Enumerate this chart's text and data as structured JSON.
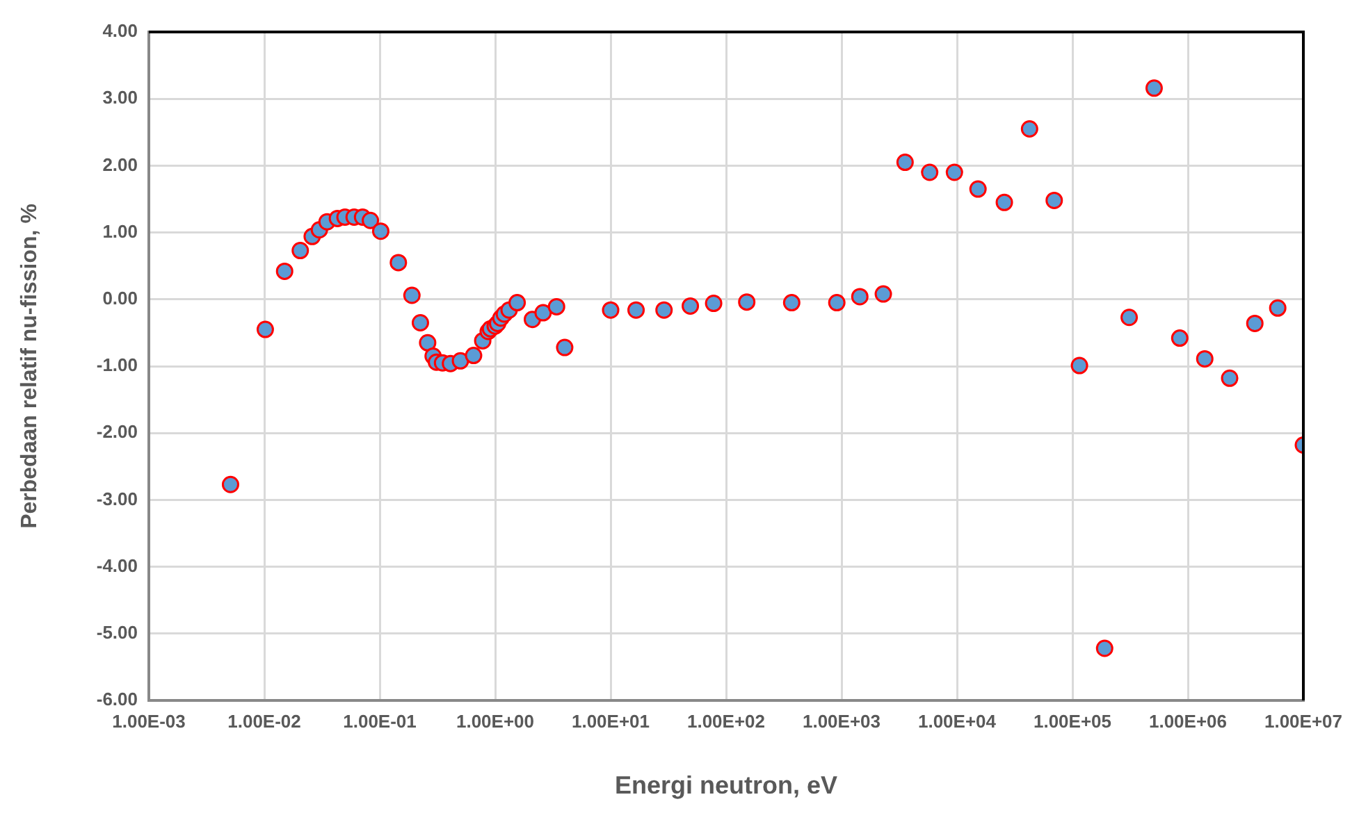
{
  "chart_data": {
    "type": "scatter",
    "xlabel": "Energi neutron, eV",
    "ylabel": "Perbedaan relatif nu-fission, %",
    "log": "x",
    "grid": true,
    "legend": false,
    "marker": "circle",
    "xlim": [
      0.001,
      10000000
    ],
    "xticks": [
      {
        "value": 0.001,
        "label": "1.00E-03"
      },
      {
        "value": 0.01,
        "label": "1.00E-02"
      },
      {
        "value": 0.1,
        "label": "1.00E-01"
      },
      {
        "value": 1,
        "label": "1.00E+00"
      },
      {
        "value": 10,
        "label": "1.00E+01"
      },
      {
        "value": 100,
        "label": "1.00E+02"
      },
      {
        "value": 1000,
        "label": "1.00E+03"
      },
      {
        "value": 10000,
        "label": "1.00E+04"
      },
      {
        "value": 100000,
        "label": "1.00E+05"
      },
      {
        "value": 1000000,
        "label": "1.00E+06"
      },
      {
        "value": 10000000,
        "label": "1.00E+07"
      }
    ],
    "ylim": [
      -6,
      4
    ],
    "yticks": [
      {
        "value": -6,
        "label": "-6.00"
      },
      {
        "value": -5,
        "label": "-5.00"
      },
      {
        "value": -4,
        "label": "-4.00"
      },
      {
        "value": -3,
        "label": "-3.00"
      },
      {
        "value": -2,
        "label": "-2.00"
      },
      {
        "value": -1,
        "label": "-1.00"
      },
      {
        "value": 0,
        "label": "0.00"
      },
      {
        "value": 1,
        "label": "1.00"
      },
      {
        "value": 2,
        "label": "2.00"
      },
      {
        "value": 3,
        "label": "3.00"
      },
      {
        "value": 4,
        "label": "4.00"
      }
    ],
    "series": [
      {
        "color": "#5b9bd5",
        "x": [
          0.0051,
          0.0102,
          0.015,
          0.0205,
          0.026,
          0.03,
          0.035,
          0.043,
          0.05,
          0.06,
          0.071,
          0.083,
          0.102,
          0.145,
          0.19,
          0.225,
          0.26,
          0.29,
          0.31,
          0.35,
          0.41,
          0.5,
          0.65,
          0.78,
          0.87,
          0.91,
          1.0,
          1.05,
          1.12,
          1.2,
          1.32,
          1.55,
          2.1,
          2.6,
          3.4,
          4.0,
          10,
          16.6,
          29,
          49,
          78,
          151,
          370,
          910,
          1440,
          2300,
          3550,
          5800,
          9500,
          15200,
          25700,
          42500,
          69500,
          115000,
          190000,
          310000,
          510000,
          850000,
          1400000,
          2300000,
          3800000,
          6000000,
          10000000
        ],
        "values": [
          -2.77,
          -0.45,
          0.42,
          0.73,
          0.94,
          1.04,
          1.16,
          1.21,
          1.23,
          1.23,
          1.23,
          1.18,
          1.02,
          0.55,
          0.06,
          -0.35,
          -0.65,
          -0.85,
          -0.94,
          -0.95,
          -0.96,
          -0.92,
          -0.84,
          -0.62,
          -0.48,
          -0.44,
          -0.4,
          -0.36,
          -0.28,
          -0.22,
          -0.16,
          -0.05,
          -0.3,
          -0.2,
          -0.11,
          -0.72,
          -0.16,
          -0.16,
          -0.16,
          -0.1,
          -0.06,
          -0.04,
          -0.05,
          -0.05,
          0.04,
          0.08,
          2.05,
          1.9,
          1.9,
          1.65,
          1.45,
          2.55,
          1.48,
          -0.99,
          -5.22,
          -0.27,
          3.16,
          -0.58,
          -0.89,
          -1.18,
          -0.36,
          -0.13,
          -2.18
        ]
      }
    ]
  }
}
